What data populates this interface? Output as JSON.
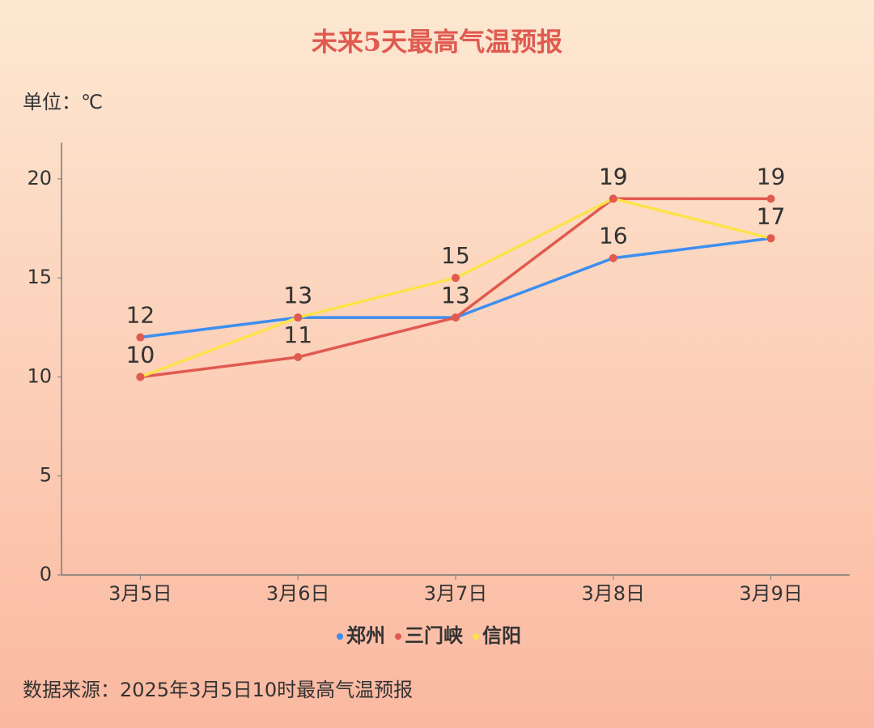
{
  "chart_data": {
    "type": "line",
    "title": "未来5天最高气温预报",
    "unit_label": "单位：℃",
    "source": "数据来源：2025年3月5日10时最高气温预报",
    "categories": [
      "3月5日",
      "3月6日",
      "3月7日",
      "3月8日",
      "3月9日"
    ],
    "series": [
      {
        "name": "郑州",
        "color": "#3d8ef0",
        "values": [
          12,
          13,
          13,
          16,
          17
        ]
      },
      {
        "name": "三门峡",
        "color": "#e05a50",
        "values": [
          10,
          11,
          13,
          19,
          19
        ]
      },
      {
        "name": "信阳",
        "color": "#fde24a",
        "values": [
          10,
          13,
          15,
          19,
          17
        ]
      }
    ],
    "marker_color": "#e05a50",
    "ylim": [
      0,
      22
    ],
    "yticks": [
      0,
      5,
      10,
      15,
      20
    ],
    "grid": false,
    "legend": "bottom"
  }
}
